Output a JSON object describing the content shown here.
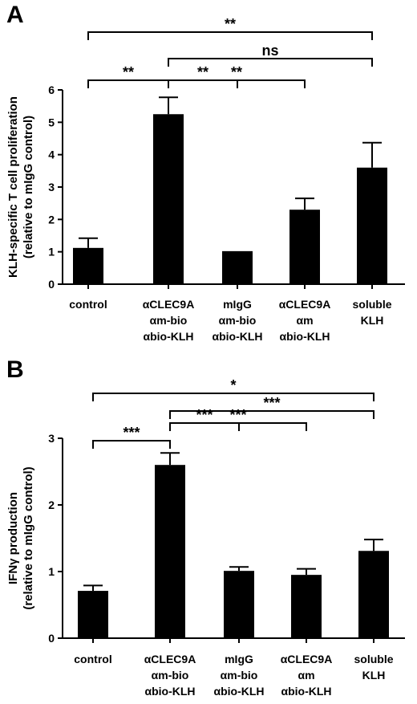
{
  "chart_data": [
    {
      "type": "bar",
      "panel_label": "A",
      "categories": [
        [
          "control"
        ],
        [
          "αCLEC9A",
          "αm-bio",
          "αbio-KLH"
        ],
        [
          "mIgG",
          "αm-bio",
          "αbio-KLH"
        ],
        [
          "αCLEC9A",
          "αm",
          "αbio-KLH"
        ],
        [
          "soluble",
          "KLH"
        ]
      ],
      "values": [
        1.12,
        5.25,
        1.02,
        2.3,
        3.6
      ],
      "errors": [
        0.3,
        0.52,
        0,
        0.35,
        0.77
      ],
      "ylabel": [
        "KLH-specific T cell proliferation",
        "(relative to mIgG control)"
      ],
      "ylim": [
        0,
        6
      ],
      "yticks": [
        "0",
        "1",
        "2",
        "3",
        "4",
        "5",
        "6"
      ],
      "significance": [
        {
          "from": 0,
          "to": 4,
          "label": "**"
        },
        {
          "from": 1,
          "to": 4,
          "label": "ns"
        },
        {
          "from": 1,
          "to": 3,
          "label": "**"
        },
        {
          "from": 1,
          "to": 2,
          "label": "**"
        },
        {
          "from": 0,
          "to": 1,
          "label": "**"
        }
      ],
      "bar_color": "#000000"
    },
    {
      "type": "bar",
      "panel_label": "B",
      "categories": [
        [
          "control"
        ],
        [
          "αCLEC9A",
          "αm-bio",
          "αbio-KLH"
        ],
        [
          "mIgG",
          "αm-bio",
          "αbio-KLH"
        ],
        [
          "αCLEC9A",
          "αm",
          "αbio-KLH"
        ],
        [
          "soluble",
          "KLH"
        ]
      ],
      "values": [
        0.71,
        2.6,
        1.01,
        0.95,
        1.31
      ],
      "errors": [
        0.08,
        0.18,
        0.06,
        0.09,
        0.17
      ],
      "ylabel": [
        "IFNγ production",
        "(relative to mIgG control)"
      ],
      "ylim": [
        0,
        3
      ],
      "yticks": [
        "0",
        "1",
        "2",
        "3"
      ],
      "significance": [
        {
          "from": 0,
          "to": 4,
          "label": "*"
        },
        {
          "from": 1,
          "to": 4,
          "label": "***"
        },
        {
          "from": 1,
          "to": 3,
          "label": "***"
        },
        {
          "from": 1,
          "to": 2,
          "label": "***"
        },
        {
          "from": 0,
          "to": 1,
          "label": "***"
        }
      ],
      "bar_color": "#000000"
    }
  ]
}
